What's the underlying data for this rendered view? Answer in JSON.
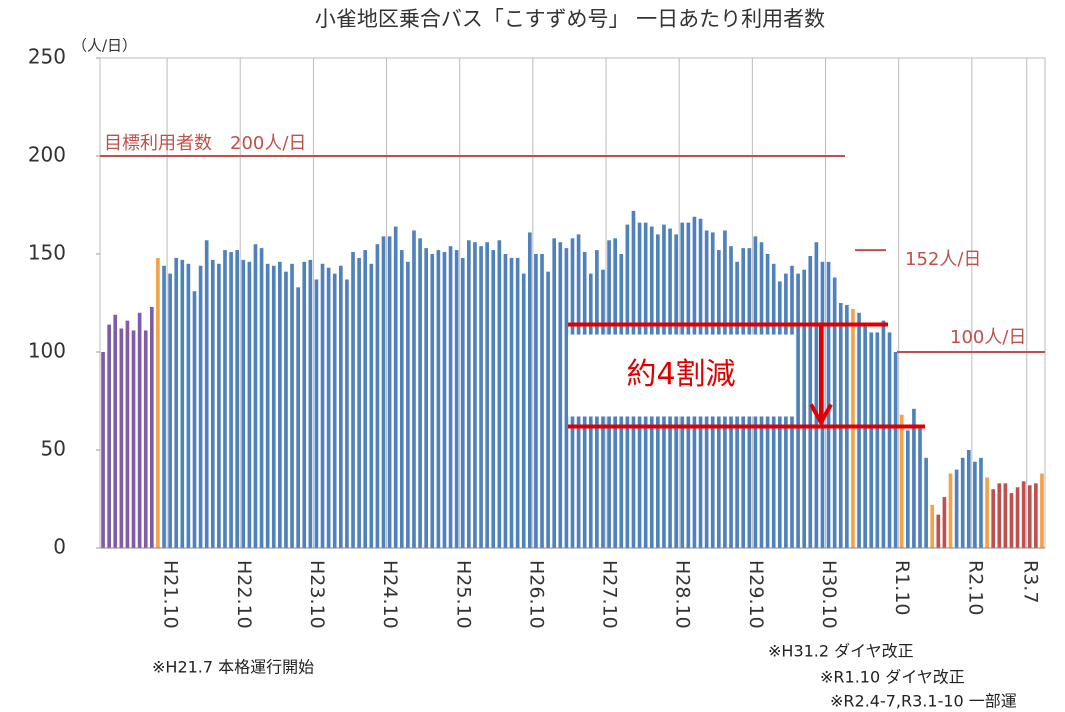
{
  "chart_data": {
    "type": "bar",
    "title": "小雀地区乗合バス「こすずめ号」 一日あたり利用者数",
    "y_unit": "（人/日）",
    "ylim": [
      0,
      250
    ],
    "yticks": [
      0,
      50,
      100,
      150,
      200,
      250
    ],
    "categories": [
      null,
      null,
      null,
      null,
      null,
      null,
      null,
      null,
      null,
      null,
      null,
      "H21.10",
      null,
      null,
      null,
      null,
      null,
      null,
      null,
      null,
      null,
      null,
      null,
      "H22.10",
      null,
      null,
      null,
      null,
      null,
      null,
      null,
      null,
      null,
      null,
      null,
      "H23.10",
      null,
      null,
      null,
      null,
      null,
      null,
      null,
      null,
      null,
      null,
      null,
      "H24.10",
      null,
      null,
      null,
      null,
      null,
      null,
      null,
      null,
      null,
      null,
      null,
      "H25.10",
      null,
      null,
      null,
      null,
      null,
      null,
      null,
      null,
      null,
      null,
      null,
      "H26.10",
      null,
      null,
      null,
      null,
      null,
      null,
      null,
      null,
      null,
      null,
      null,
      "H27.10",
      null,
      null,
      null,
      null,
      null,
      null,
      null,
      null,
      null,
      null,
      null,
      "H28.10",
      null,
      null,
      null,
      null,
      null,
      null,
      null,
      null,
      null,
      null,
      null,
      "H29.10",
      null,
      null,
      null,
      null,
      null,
      null,
      null,
      null,
      null,
      null,
      null,
      "H30.10",
      null,
      null,
      null,
      null,
      null,
      null,
      null,
      null,
      null,
      null,
      null,
      "R1.10",
      null,
      null,
      null,
      null,
      null,
      null,
      null,
      null,
      null,
      null,
      null,
      "R2.10",
      null,
      null,
      null,
      null,
      null,
      null,
      null,
      null,
      "R3.7",
      null,
      null
    ],
    "values": [
      100,
      114,
      119,
      112,
      116,
      111,
      120,
      111,
      123,
      148,
      144,
      140,
      148,
      147,
      145,
      131,
      144,
      157,
      147,
      145,
      152,
      151,
      152,
      147,
      146,
      155,
      153,
      145,
      144,
      146,
      141,
      145,
      133,
      146,
      147,
      137,
      145,
      143,
      140,
      144,
      137,
      151,
      148,
      152,
      145,
      155,
      159,
      159,
      164,
      152,
      146,
      162,
      158,
      153,
      150,
      152,
      151,
      154,
      152,
      148,
      157,
      156,
      154,
      156,
      152,
      157,
      150,
      148,
      148,
      140,
      161,
      150,
      150,
      141,
      158,
      156,
      153,
      158,
      160,
      151,
      140,
      152,
      142,
      157,
      158,
      150,
      165,
      172,
      166,
      166,
      164,
      160,
      165,
      163,
      160,
      166,
      166,
      169,
      168,
      162,
      161,
      152,
      162,
      154,
      146,
      153,
      153,
      159,
      156,
      150,
      145,
      136,
      140,
      144,
      140,
      142,
      149,
      156,
      146,
      146,
      138,
      125,
      124,
      122,
      120,
      113,
      110,
      110,
      116,
      110,
      100,
      68,
      60,
      71,
      62,
      46,
      22,
      17,
      26,
      38,
      40,
      46,
      50,
      44,
      46,
      36,
      30,
      33,
      33,
      28,
      31,
      34,
      32,
      33,
      38
    ],
    "colors": [
      "#7e5ca8",
      "#7e5ca8",
      "#7e5ca8",
      "#7e5ca8",
      "#7e5ca8",
      "#7e5ca8",
      "#7e5ca8",
      "#7e5ca8",
      "#7e5ca8",
      "#f5a04a",
      "#4f81bd",
      "#4f81bd",
      "#4f81bd",
      "#4f81bd",
      "#4f81bd",
      "#4f81bd",
      "#4f81bd",
      "#4f81bd",
      "#4f81bd",
      "#4f81bd",
      "#4f81bd",
      "#4f81bd",
      "#4f81bd",
      "#4f81bd",
      "#4f81bd",
      "#4f81bd",
      "#4f81bd",
      "#4f81bd",
      "#4f81bd",
      "#4f81bd",
      "#4f81bd",
      "#4f81bd",
      "#4f81bd",
      "#4f81bd",
      "#4f81bd",
      "#4f81bd",
      "#4f81bd",
      "#4f81bd",
      "#4f81bd",
      "#4f81bd",
      "#4f81bd",
      "#4f81bd",
      "#4f81bd",
      "#4f81bd",
      "#4f81bd",
      "#4f81bd",
      "#4f81bd",
      "#4f81bd",
      "#4f81bd",
      "#4f81bd",
      "#4f81bd",
      "#4f81bd",
      "#4f81bd",
      "#4f81bd",
      "#4f81bd",
      "#4f81bd",
      "#4f81bd",
      "#4f81bd",
      "#4f81bd",
      "#4f81bd",
      "#4f81bd",
      "#4f81bd",
      "#4f81bd",
      "#4f81bd",
      "#4f81bd",
      "#4f81bd",
      "#4f81bd",
      "#4f81bd",
      "#4f81bd",
      "#4f81bd",
      "#4f81bd",
      "#4f81bd",
      "#4f81bd",
      "#4f81bd",
      "#4f81bd",
      "#4f81bd",
      "#4f81bd",
      "#4f81bd",
      "#4f81bd",
      "#4f81bd",
      "#4f81bd",
      "#4f81bd",
      "#4f81bd",
      "#4f81bd",
      "#4f81bd",
      "#4f81bd",
      "#4f81bd",
      "#4f81bd",
      "#4f81bd",
      "#4f81bd",
      "#4f81bd",
      "#4f81bd",
      "#4f81bd",
      "#4f81bd",
      "#4f81bd",
      "#4f81bd",
      "#4f81bd",
      "#4f81bd",
      "#4f81bd",
      "#4f81bd",
      "#4f81bd",
      "#4f81bd",
      "#4f81bd",
      "#4f81bd",
      "#4f81bd",
      "#4f81bd",
      "#4f81bd",
      "#4f81bd",
      "#4f81bd",
      "#4f81bd",
      "#4f81bd",
      "#4f81bd",
      "#4f81bd",
      "#4f81bd",
      "#4f81bd",
      "#4f81bd",
      "#4f81bd",
      "#4f81bd",
      "#4f81bd",
      "#4f81bd",
      "#4f81bd",
      "#4f81bd",
      "#4f81bd",
      "#f5a04a",
      "#4f81bd",
      "#4f81bd",
      "#4f81bd",
      "#4f81bd",
      "#4f81bd",
      "#4f81bd",
      "#4f81bd",
      "#f5a04a",
      "#4f81bd",
      "#4f81bd",
      "#4f81bd",
      "#4f81bd",
      "#f5a04a",
      "#c0504d",
      "#c0504d",
      "#f5a04a",
      "#4f81bd",
      "#4f81bd",
      "#4f81bd",
      "#4f81bd",
      "#4f81bd",
      "#f5a04a",
      "#c0504d",
      "#c0504d",
      "#c0504d",
      "#c0504d",
      "#c0504d",
      "#c0504d",
      "#c0504d",
      "#c0504d",
      "#f5a04a"
    ],
    "target": {
      "label": "目標利用者数　200人/日",
      "value": 200
    },
    "level_152": {
      "label": "152人/日",
      "value": 152
    },
    "level_100": {
      "label": "100人/日",
      "value": 100
    },
    "reduction": {
      "label": "約4割減",
      "from": 114,
      "to": 62
    },
    "notes": [
      "※H21.7 本格運行開始",
      "※H31.2 ダイヤ改正",
      "※R1.10 ダイヤ改正",
      "※R2.4-7,R3.1-10 一部運"
    ]
  }
}
